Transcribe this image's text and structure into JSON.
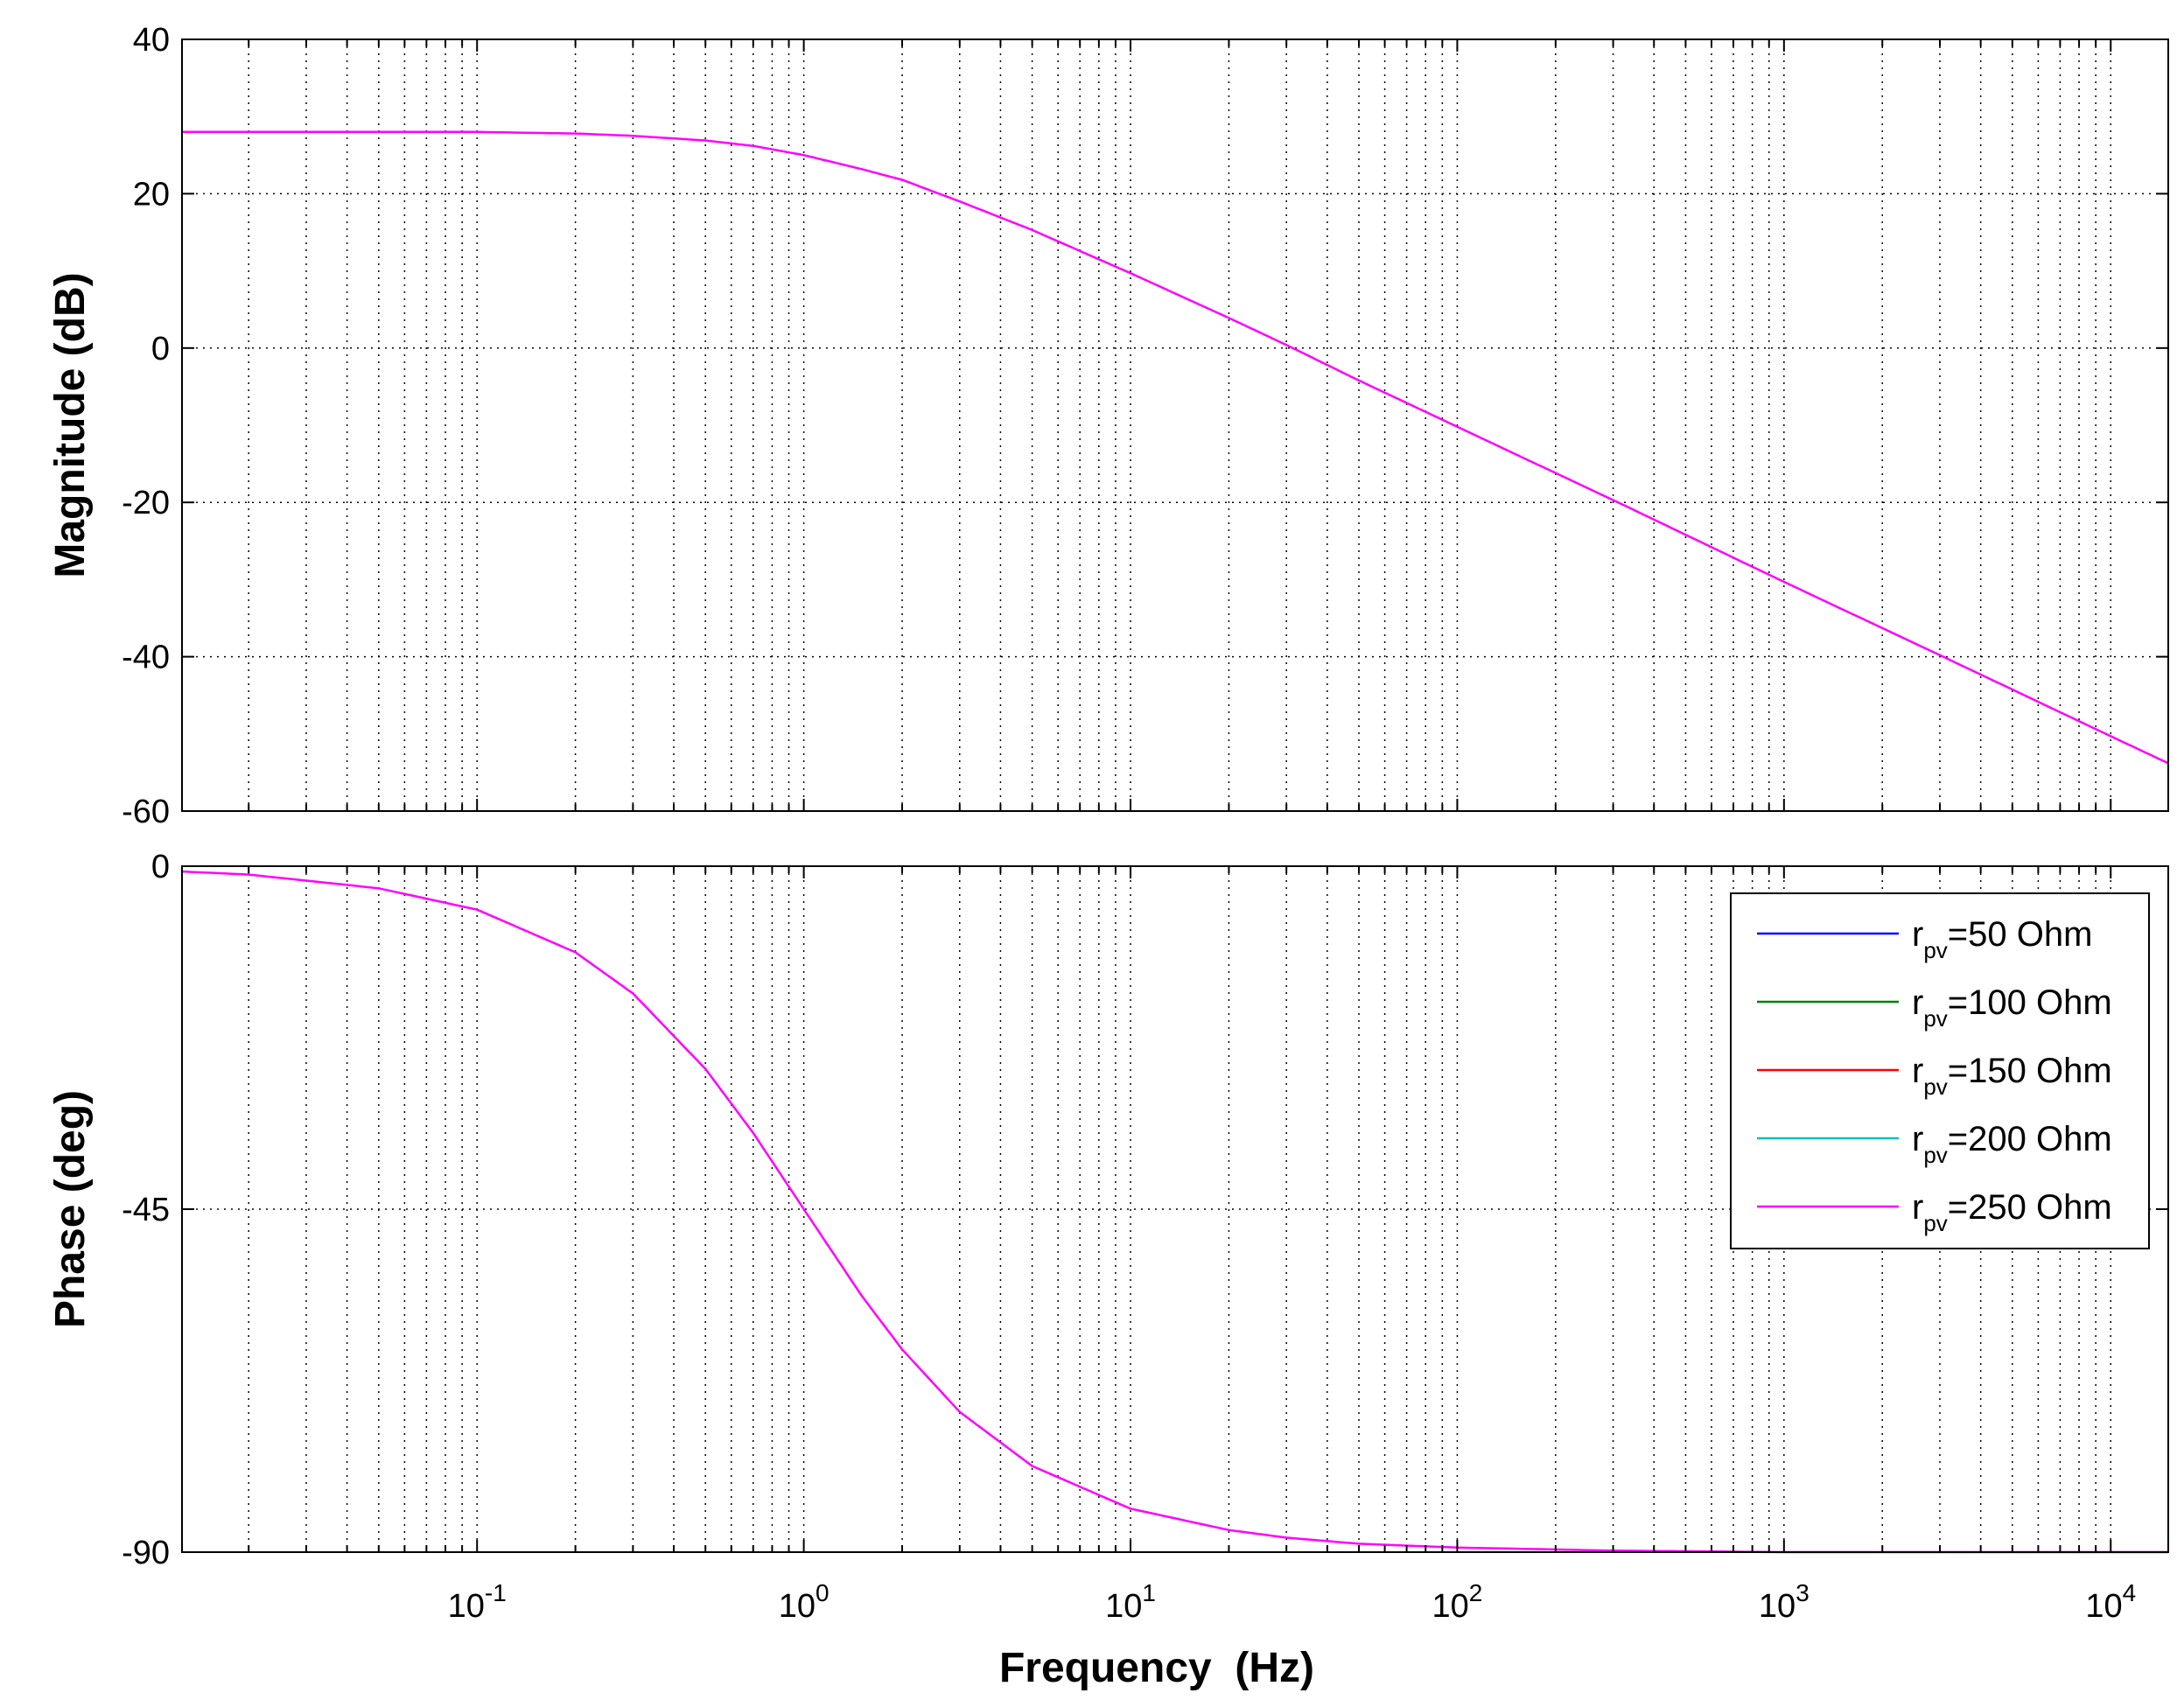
{
  "chart_data": [
    {
      "type": "line",
      "panel": "magnitude",
      "xscale": "log",
      "xlim": [
        0.0125,
        15000
      ],
      "ylim": [
        -60,
        40
      ],
      "yticks": [
        40,
        20,
        0,
        -20,
        -40,
        -60
      ],
      "ylabel": "Magnitude (dB)",
      "xlabel": "",
      "grid": true,
      "series": [
        {
          "name": "r_pv=250 Ohm",
          "color": "#ff00ff",
          "x": [
            0.0125,
            0.05,
            0.1,
            0.2,
            0.3,
            0.5,
            0.7,
            1,
            1.5,
            2,
            3,
            5,
            10,
            20,
            30,
            50,
            100,
            300,
            1000,
            3000,
            10000,
            15000
          ],
          "y": [
            28.0,
            28.0,
            28.0,
            27.8,
            27.5,
            26.9,
            26.2,
            25.0,
            23.2,
            21.8,
            19.0,
            15.3,
            9.7,
            3.9,
            0.4,
            -4.2,
            -10.2,
            -19.7,
            -30.3,
            -39.8,
            -50.3,
            -53.8
          ]
        }
      ]
    },
    {
      "type": "line",
      "panel": "phase",
      "xscale": "log",
      "xlim": [
        0.0125,
        15000
      ],
      "ylim": [
        -90,
        0
      ],
      "yticks": [
        0,
        -45,
        -90
      ],
      "ylabel": "Phase (deg)",
      "xlabel": "Frequency  (Hz)",
      "xticks": [
        {
          "base": "10",
          "exp": "-1",
          "value": 0.1
        },
        {
          "base": "10",
          "exp": "0",
          "value": 1
        },
        {
          "base": "10",
          "exp": "1",
          "value": 10
        },
        {
          "base": "10",
          "exp": "2",
          "value": 100
        },
        {
          "base": "10",
          "exp": "3",
          "value": 1000
        },
        {
          "base": "10",
          "exp": "4",
          "value": 10000
        }
      ],
      "grid": true,
      "legend_position": "top-right",
      "series": [
        {
          "name": "r_pv=50 Ohm",
          "label_main": "r",
          "label_sub": "pv",
          "label_rest": "=50 Ohm",
          "color": "#0000ff",
          "x": [],
          "y": []
        },
        {
          "name": "r_pv=100 Ohm",
          "label_main": "r",
          "label_sub": "pv",
          "label_rest": "=100 Ohm",
          "color": "#008000",
          "x": [],
          "y": []
        },
        {
          "name": "r_pv=150 Ohm",
          "label_main": "r",
          "label_sub": "pv",
          "label_rest": "=150 Ohm",
          "color": "#ff0000",
          "x": [],
          "y": []
        },
        {
          "name": "r_pv=200 Ohm",
          "label_main": "r",
          "label_sub": "pv",
          "label_rest": "=200 Ohm",
          "color": "#00bfbf",
          "x": [],
          "y": []
        },
        {
          "name": "r_pv=250 Ohm",
          "label_main": "r",
          "label_sub": "pv",
          "label_rest": "=250 Ohm",
          "color": "#ff00ff",
          "x": [
            0.0125,
            0.02,
            0.05,
            0.1,
            0.2,
            0.3,
            0.5,
            0.7,
            1,
            1.5,
            2,
            3,
            5,
            10,
            20,
            30,
            50,
            100,
            300,
            1000,
            15000
          ],
          "y": [
            -0.7,
            -1.1,
            -2.9,
            -5.7,
            -11.3,
            -16.7,
            -26.6,
            -35.0,
            -45.0,
            -56.3,
            -63.4,
            -71.6,
            -78.7,
            -84.3,
            -87.1,
            -88.1,
            -88.9,
            -89.4,
            -89.8,
            -90.0,
            -90.0
          ]
        }
      ]
    }
  ]
}
